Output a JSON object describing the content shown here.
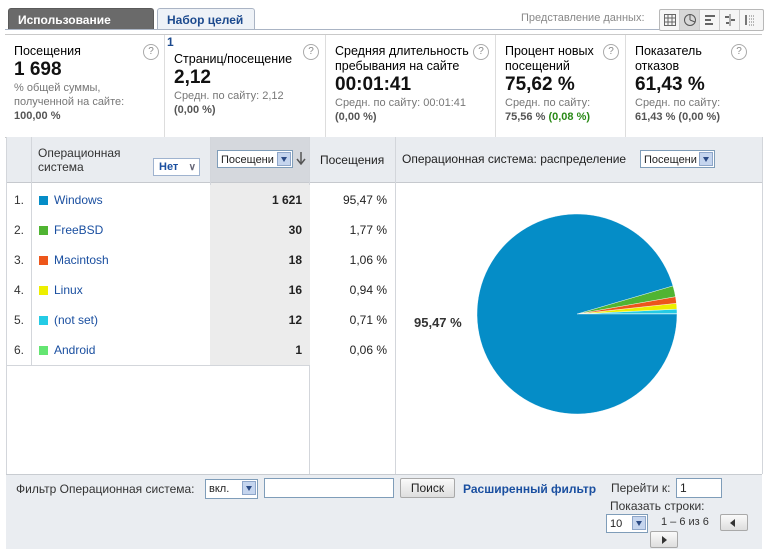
{
  "tabs": {
    "active": "Использование сайта",
    "inactive": "Набор целей 1"
  },
  "view": {
    "label": "Представление данных:",
    "icons": [
      "table-icon",
      "pie-icon",
      "bar-icon",
      "pivot-icon",
      "compare-icon"
    ]
  },
  "metrics": [
    {
      "title": "Посещения",
      "value": "1 698",
      "sub1": "% общей суммы,",
      "sub2": "полученной на сайте:",
      "sub3": "100,00 %"
    },
    {
      "title": "Страниц/посещение",
      "value": "2,12",
      "sub1": "Средн. по сайту: 2,12",
      "sub2": "(0,00 %)"
    },
    {
      "title1": "Средняя длительность",
      "title2": "пребывания на сайте",
      "value": "00:01:41",
      "sub1": "Средн. по сайту: 00:01:41",
      "sub2": "(0,00 %)"
    },
    {
      "title1": "Процент новых",
      "title2": "посещений",
      "value": "75,62 %",
      "sub1": "Средн. по сайту:",
      "sub2a": "75,56 %",
      "sub2b": "(0,08 %)"
    },
    {
      "title1": "Показатель",
      "title2": "отказов",
      "value": "61,43 %",
      "sub1": "Средн. по сайту:",
      "sub2": "61,43 % (0,00 %)"
    }
  ],
  "table": {
    "col_dimension": "Операционная система",
    "filter_none": "Нет",
    "metric_select": "Посещени",
    "col_visits": "Посещения",
    "chart_title": "Операционная система: распределение",
    "chart_select": "Посещени",
    "rows": [
      {
        "n": "1.",
        "name": "Windows",
        "visits": "1 621",
        "pct": "95,47 %",
        "color": "#058dc7"
      },
      {
        "n": "2.",
        "name": "FreeBSD",
        "visits": "30",
        "pct": "1,77 %",
        "color": "#50b432"
      },
      {
        "n": "3.",
        "name": "Macintosh",
        "visits": "18",
        "pct": "1,06 %",
        "color": "#ed561b"
      },
      {
        "n": "4.",
        "name": "Linux",
        "visits": "16",
        "pct": "0,94 %",
        "color": "#edef00"
      },
      {
        "n": "5.",
        "name": "(not set)",
        "visits": "12",
        "pct": "0,71 %",
        "color": "#24cbe5"
      },
      {
        "n": "6.",
        "name": "Android",
        "visits": "1",
        "pct": "0,06 %",
        "color": "#64e572"
      }
    ]
  },
  "chart_data": {
    "type": "pie",
    "categories": [
      "Windows",
      "FreeBSD",
      "Macintosh",
      "Linux",
      "(not set)",
      "Android"
    ],
    "values": [
      95.47,
      1.77,
      1.06,
      0.94,
      0.71,
      0.06
    ],
    "colors": [
      "#058dc7",
      "#50b432",
      "#ed561b",
      "#edef00",
      "#24cbe5",
      "#64e572"
    ],
    "annotation": "95,47  %"
  },
  "footer": {
    "filter_label": "Фильтр Операционная система:",
    "filter_mode": "вкл.",
    "filter_value": "",
    "search_button": "Поиск",
    "advanced_filter": "Расширенный фильтр",
    "goto_label": "Перейти к:",
    "goto_value": "1",
    "rows_label": "Показать строки:",
    "rows_value": "10",
    "range": "1 – 6 из 6"
  }
}
